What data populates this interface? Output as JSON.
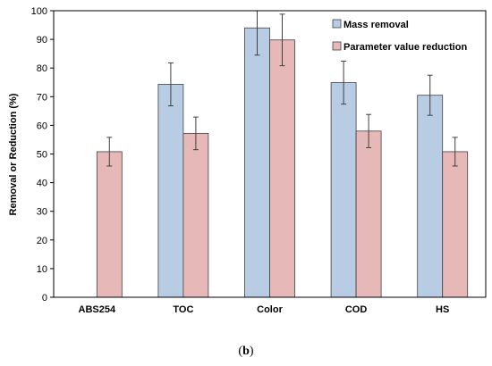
{
  "caption": {
    "open": "(",
    "letter": "b",
    "close": ")"
  },
  "colors": {
    "mass_removal": "#b8cce4",
    "parameter_reduction": "#e6b8b7",
    "bar_stroke": "#404040",
    "error_bar": "#404040",
    "axis": "#000000"
  },
  "chart_data": {
    "type": "bar",
    "categories": [
      "ABS254",
      "TOC",
      "Color",
      "COD",
      "HS"
    ],
    "series": [
      {
        "name": "Mass removal",
        "values": [
          null,
          74.3,
          94.0,
          74.9,
          70.5
        ],
        "error": [
          null,
          7.5,
          9.5,
          7.5,
          7.0
        ]
      },
      {
        "name": "Parameter value reduction",
        "values": [
          50.8,
          57.2,
          89.8,
          58.0,
          50.8
        ],
        "error": [
          5.0,
          5.7,
          9.0,
          5.8,
          5.0
        ]
      }
    ],
    "ylabel": "Removal or Reduction (%)",
    "xlabel": "",
    "ylim": [
      0,
      100
    ],
    "yticks": [
      0,
      10,
      20,
      30,
      40,
      50,
      60,
      70,
      80,
      90,
      100
    ],
    "grid": false,
    "legend_position": "top-right"
  }
}
